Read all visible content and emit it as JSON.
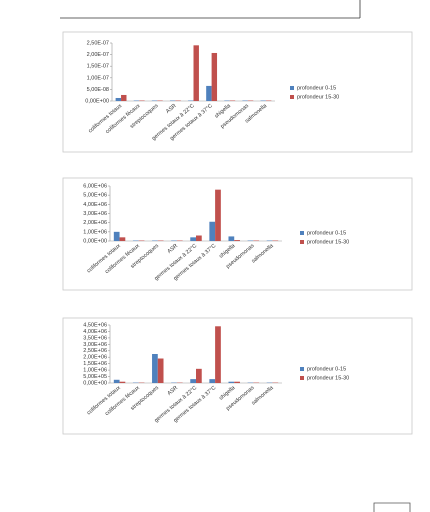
{
  "chart_data": [
    {
      "type": "bar",
      "categories": [
        "coliformes totaux",
        "coliformes fécaux",
        "streptocoques",
        "ASR",
        "germes totaux à 22°C",
        "germes totaux à 37°C",
        "shigella",
        "pseudomonas",
        "salmonella"
      ],
      "series": [
        {
          "name": "profondeur 0-15",
          "color": "#4f81bd",
          "values": [
            1.3e-08,
            2e-09,
            2e-09,
            2e-09,
            2e-09,
            6.5e-08,
            2e-09,
            2e-09,
            2e-09
          ]
        },
        {
          "name": "profondeur 15-30",
          "color": "#c0504d",
          "values": [
            2.6e-08,
            2e-09,
            2e-09,
            2e-09,
            2.4e-07,
            2.07e-07,
            2e-09,
            2e-09,
            2e-09
          ]
        }
      ],
      "ylim": [
        0,
        2.5e-07
      ],
      "yticks": [
        {
          "value": 0,
          "label": "0,00E+00"
        },
        {
          "value": 5e-08,
          "label": "5,00E-08"
        },
        {
          "value": 1e-07,
          "label": "1,00E-07"
        },
        {
          "value": 1.5e-07,
          "label": "1,50E-07"
        },
        {
          "value": 2e-07,
          "label": "2,00E-07"
        },
        {
          "value": 2.5e-07,
          "label": "2,50E-07"
        }
      ],
      "legend": "right"
    },
    {
      "type": "bar",
      "categories": [
        "coliformes totaux",
        "coliformes fécaux",
        "streptocoques",
        "ASR",
        "germes totaux à 22°C",
        "germes totaux à 37°C",
        "shigella",
        "pseudomonas",
        "salmonella"
      ],
      "series": [
        {
          "name": "profondeur 0-15",
          "color": "#4f81bd",
          "values": [
            1000000,
            50000,
            50000,
            50000,
            400000,
            2100000,
            500000,
            50000,
            50000
          ]
        },
        {
          "name": "profondeur 15-30",
          "color": "#c0504d",
          "values": [
            400000,
            50000,
            50000,
            50000,
            600000,
            5600000,
            100000,
            50000,
            50000
          ]
        }
      ],
      "ylim": [
        0,
        6000000
      ],
      "yticks": [
        {
          "value": 0,
          "label": "0,00E+00"
        },
        {
          "value": 1000000,
          "label": "1,00E+06"
        },
        {
          "value": 2000000,
          "label": "2,00E+06"
        },
        {
          "value": 3000000,
          "label": "3,00E+06"
        },
        {
          "value": 4000000,
          "label": "4,00E+06"
        },
        {
          "value": 5000000,
          "label": "5,00E+06"
        },
        {
          "value": 6000000,
          "label": "6,00E+06"
        }
      ],
      "legend": "right"
    },
    {
      "type": "bar",
      "categories": [
        "coliformes totaux",
        "coliformes fécaux",
        "streptocoques",
        "ASR",
        "germes totaux à 22°C",
        "germes totaux à 37°C",
        "shigella",
        "pseudomonas",
        "salmonella"
      ],
      "series": [
        {
          "name": "profondeur 0-15",
          "color": "#4f81bd",
          "values": [
            250000,
            30000,
            2250000,
            30000,
            300000,
            300000,
            100000,
            30000,
            30000
          ]
        },
        {
          "name": "profondeur 15-30",
          "color": "#c0504d",
          "values": [
            100000,
            30000,
            1900000,
            30000,
            1100000,
            4400000,
            100000,
            30000,
            30000
          ]
        }
      ],
      "ylim": [
        0,
        4500000
      ],
      "yticks": [
        {
          "value": 0,
          "label": "0,00E+00"
        },
        {
          "value": 500000,
          "label": "5,00E+05"
        },
        {
          "value": 1000000,
          "label": "1,00E+06"
        },
        {
          "value": 1500000,
          "label": "1,50E+06"
        },
        {
          "value": 2000000,
          "label": "2,00E+06"
        },
        {
          "value": 2500000,
          "label": "2,50E+06"
        },
        {
          "value": 3000000,
          "label": "3,00E+06"
        },
        {
          "value": 3500000,
          "label": "3,50E+06"
        },
        {
          "value": 4000000,
          "label": "4,00E+06"
        },
        {
          "value": 4500000,
          "label": "4,50E+06"
        }
      ],
      "legend": "right"
    }
  ]
}
